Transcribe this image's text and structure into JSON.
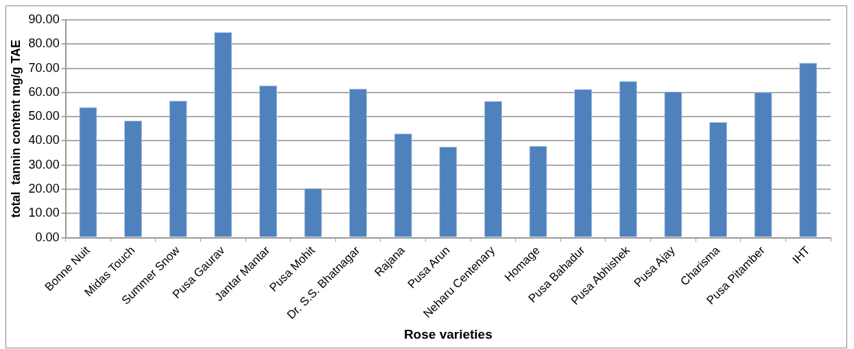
{
  "chart_data": {
    "type": "bar",
    "xlabel": "Rose varieties",
    "ylabel": "total  tannin content mg/g TAE",
    "categories": [
      "Bonne Nuit",
      "Midas Touch",
      "Summer Snow",
      "Pusa Gaurav",
      "Jantar Mantar",
      "Pusa Mohit",
      "Dr. S.S. Bhatnagar",
      "Rajana",
      "Pusa Arun",
      "Neharu Centenary",
      "Homage",
      "Pusa Bahadur",
      "Pusa Abhishek",
      "Pusa Ajay",
      "Charisma",
      "Pusa Pitamber",
      "IHT"
    ],
    "values": [
      53.9,
      48.4,
      56.6,
      85.0,
      62.9,
      20.4,
      61.6,
      43.1,
      37.6,
      56.5,
      37.9,
      61.4,
      64.7,
      60.4,
      47.8,
      60.1,
      72.3
    ],
    "color": "#4f81bd",
    "ylim": [
      0,
      90
    ],
    "yticks": [
      {
        "value": 0,
        "label": "0.00"
      },
      {
        "value": 10,
        "label": "10.00"
      },
      {
        "value": 20,
        "label": "20.00"
      },
      {
        "value": 30,
        "label": "30.00"
      },
      {
        "value": 40,
        "label": "40.00"
      },
      {
        "value": 50,
        "label": "50.00"
      },
      {
        "value": 60,
        "label": "60.00"
      },
      {
        "value": 70,
        "label": "70.00"
      },
      {
        "value": 80,
        "label": "80.00"
      },
      {
        "value": 90,
        "label": "90.00"
      }
    ],
    "grid": "y"
  }
}
